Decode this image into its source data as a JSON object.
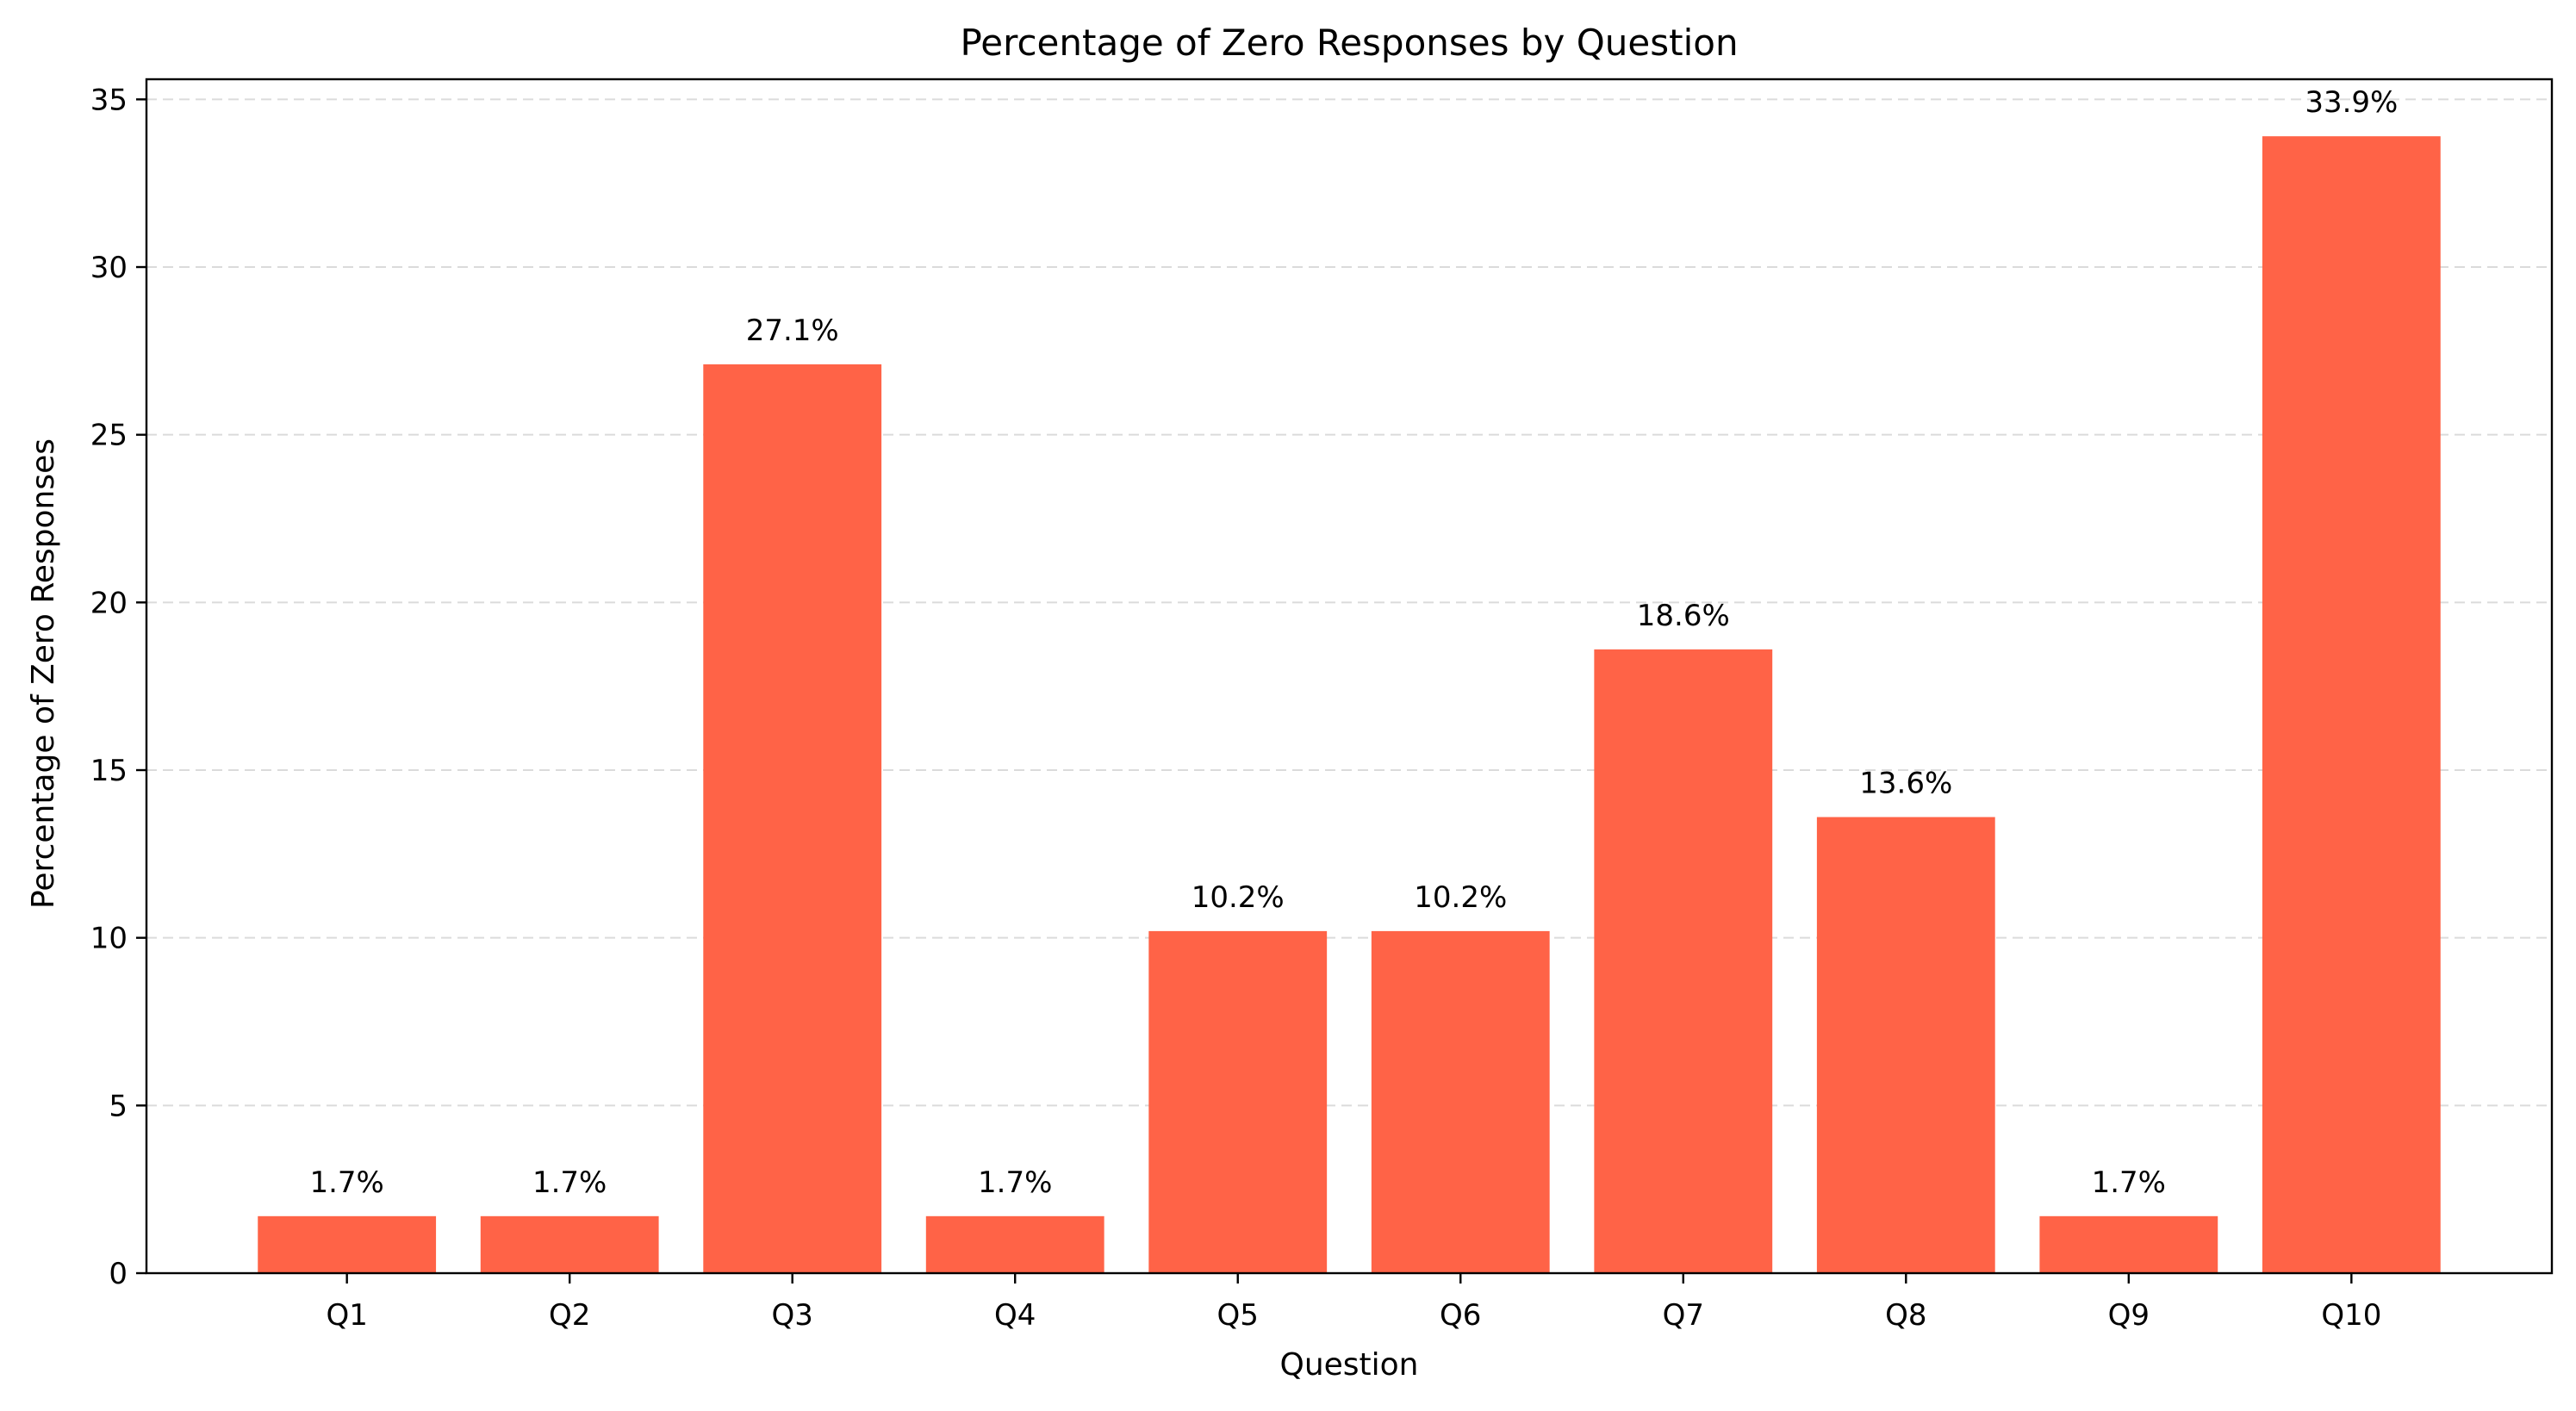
{
  "chart_data": {
    "type": "bar",
    "title": "Percentage of Zero Responses by Question",
    "xlabel": "Question",
    "ylabel": "Percentage of Zero Responses",
    "categories": [
      "Q1",
      "Q2",
      "Q3",
      "Q4",
      "Q5",
      "Q6",
      "Q7",
      "Q8",
      "Q9",
      "Q10"
    ],
    "values": [
      1.7,
      1.7,
      27.1,
      1.7,
      10.2,
      10.2,
      18.6,
      13.6,
      1.7,
      33.9
    ],
    "data_labels": [
      "1.7%",
      "1.7%",
      "27.1%",
      "1.7%",
      "10.2%",
      "10.2%",
      "18.6%",
      "13.6%",
      "1.7%",
      "33.9%"
    ],
    "ylim": [
      0,
      35.6
    ],
    "yticks": [
      0,
      5,
      10,
      15,
      20,
      25,
      30,
      35
    ],
    "grid": "y-dashed",
    "bar_color": "#ff6347"
  }
}
